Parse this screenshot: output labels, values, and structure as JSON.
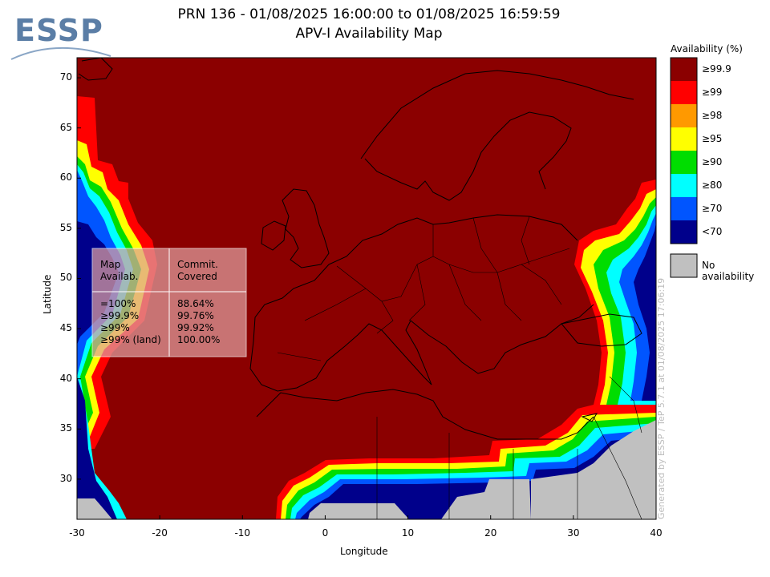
{
  "header": {
    "logo_text": "ESSP",
    "title_line1": "PRN 136 - 01/08/2025 16:00:00 to 01/08/2025 16:59:59",
    "title_line2": "APV-I Availability Map"
  },
  "map": {
    "lon_range": [
      -30,
      40
    ],
    "lat_range": [
      26,
      72
    ],
    "x_ticks": [
      "-30",
      "-20",
      "-10",
      "0",
      "10",
      "20",
      "30",
      "40"
    ],
    "y_ticks": [
      "30",
      "35",
      "40",
      "45",
      "50",
      "55",
      "60",
      "65",
      "70"
    ],
    "xlabel": "Longitude",
    "ylabel": "Latitude",
    "colors": {
      "ge99_9": "#8b0000",
      "ge99": "#ff0000",
      "ge98": "#ff9900",
      "ge95": "#ffff00",
      "ge90": "#00dd00",
      "ge80": "#00ffff",
      "ge70": "#0055ff",
      "lt70": "#00008b",
      "none": "#c0c0c0"
    }
  },
  "legend": {
    "title": "Availability (%)",
    "items": [
      "≥99.9",
      "≥99",
      "≥98",
      "≥95",
      "≥90",
      "≥80",
      "≥70",
      "<70"
    ],
    "no_availability": "No availability"
  },
  "stats_table": {
    "col1_header": [
      "Map",
      "Availab."
    ],
    "col2_header": [
      "Commit.",
      "Covered"
    ],
    "rows": [
      {
        "label": "=100%",
        "value": "88.64%"
      },
      {
        "label": "≥99.9%",
        "value": "99.76%"
      },
      {
        "label": "≥99%",
        "value": "99.92%"
      },
      {
        "label": "≥99% (land)",
        "value": "100.00%"
      }
    ]
  },
  "credit": "Generated by ESSP / TeP 5.7.1 at 01/08/2025 17:06:19"
}
